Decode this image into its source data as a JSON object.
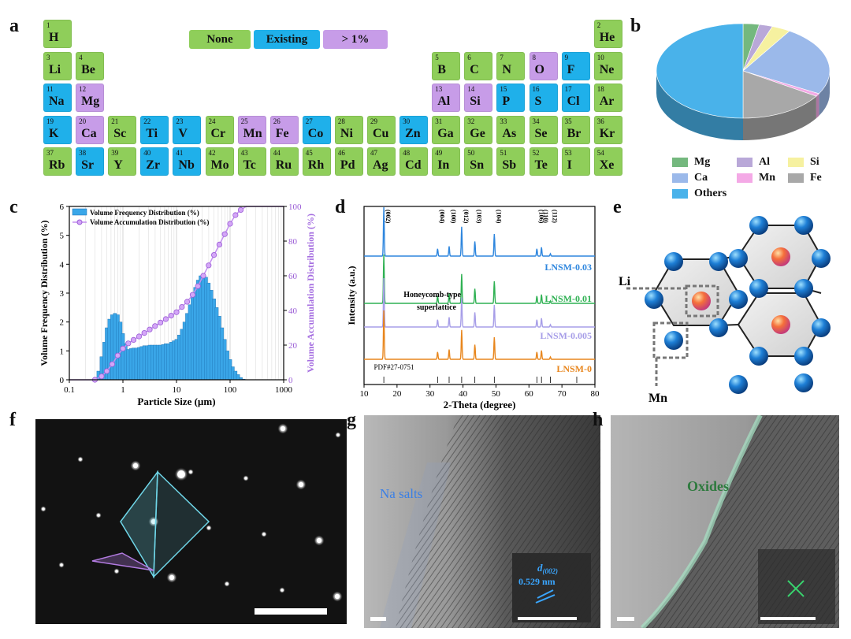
{
  "panel_labels": {
    "a": "a",
    "b": "b",
    "c": "c",
    "d": "d",
    "e": "e",
    "f": "f",
    "g": "g",
    "h": "h"
  },
  "legend": [
    {
      "label": "None",
      "color": "#8fce5a"
    },
    {
      "label": "Existing",
      "color": "#1fb0ea"
    },
    {
      "label": "> 1%",
      "color": "#c79ce8"
    }
  ],
  "colors": {
    "none": "#8fce5a",
    "existing": "#1fb0ea",
    "gt1": "#c79ce8"
  },
  "elements": [
    {
      "n": "1",
      "s": "H",
      "c": "none",
      "row": 0,
      "col": 0
    },
    {
      "n": "2",
      "s": "He",
      "c": "none",
      "row": 0,
      "col": 17
    },
    {
      "n": "3",
      "s": "Li",
      "c": "none",
      "row": 1,
      "col": 0
    },
    {
      "n": "4",
      "s": "Be",
      "c": "none",
      "row": 1,
      "col": 1
    },
    {
      "n": "5",
      "s": "B",
      "c": "none",
      "row": 1,
      "col": 12
    },
    {
      "n": "6",
      "s": "C",
      "c": "none",
      "row": 1,
      "col": 13
    },
    {
      "n": "7",
      "s": "N",
      "c": "none",
      "row": 1,
      "col": 14
    },
    {
      "n": "8",
      "s": "O",
      "c": "gt1",
      "row": 1,
      "col": 15
    },
    {
      "n": "9",
      "s": "F",
      "c": "existing",
      "row": 1,
      "col": 16
    },
    {
      "n": "10",
      "s": "Ne",
      "c": "none",
      "row": 1,
      "col": 17
    },
    {
      "n": "11",
      "s": "Na",
      "c": "existing",
      "row": 2,
      "col": 0
    },
    {
      "n": "12",
      "s": "Mg",
      "c": "gt1",
      "row": 2,
      "col": 1
    },
    {
      "n": "13",
      "s": "Al",
      "c": "gt1",
      "row": 2,
      "col": 12
    },
    {
      "n": "14",
      "s": "Si",
      "c": "gt1",
      "row": 2,
      "col": 13
    },
    {
      "n": "15",
      "s": "P",
      "c": "existing",
      "row": 2,
      "col": 14
    },
    {
      "n": "16",
      "s": "S",
      "c": "existing",
      "row": 2,
      "col": 15
    },
    {
      "n": "17",
      "s": "Cl",
      "c": "existing",
      "row": 2,
      "col": 16
    },
    {
      "n": "18",
      "s": "Ar",
      "c": "none",
      "row": 2,
      "col": 17
    },
    {
      "n": "19",
      "s": "K",
      "c": "existing",
      "row": 3,
      "col": 0
    },
    {
      "n": "20",
      "s": "Ca",
      "c": "gt1",
      "row": 3,
      "col": 1
    },
    {
      "n": "21",
      "s": "Sc",
      "c": "none",
      "row": 3,
      "col": 2
    },
    {
      "n": "22",
      "s": "Ti",
      "c": "existing",
      "row": 3,
      "col": 3
    },
    {
      "n": "23",
      "s": "V",
      "c": "existing",
      "row": 3,
      "col": 4
    },
    {
      "n": "24",
      "s": "Cr",
      "c": "none",
      "row": 3,
      "col": 5
    },
    {
      "n": "25",
      "s": "Mn",
      "c": "gt1",
      "row": 3,
      "col": 6
    },
    {
      "n": "26",
      "s": "Fe",
      "c": "gt1",
      "row": 3,
      "col": 7
    },
    {
      "n": "27",
      "s": "Co",
      "c": "existing",
      "row": 3,
      "col": 8
    },
    {
      "n": "28",
      "s": "Ni",
      "c": "none",
      "row": 3,
      "col": 9
    },
    {
      "n": "29",
      "s": "Cu",
      "c": "none",
      "row": 3,
      "col": 10
    },
    {
      "n": "30",
      "s": "Zn",
      "c": "existing",
      "row": 3,
      "col": 11
    },
    {
      "n": "31",
      "s": "Ga",
      "c": "none",
      "row": 3,
      "col": 12
    },
    {
      "n": "32",
      "s": "Ge",
      "c": "none",
      "row": 3,
      "col": 13
    },
    {
      "n": "33",
      "s": "As",
      "c": "none",
      "row": 3,
      "col": 14
    },
    {
      "n": "34",
      "s": "Se",
      "c": "none",
      "row": 3,
      "col": 15
    },
    {
      "n": "35",
      "s": "Br",
      "c": "none",
      "row": 3,
      "col": 16
    },
    {
      "n": "36",
      "s": "Kr",
      "c": "none",
      "row": 3,
      "col": 17
    },
    {
      "n": "37",
      "s": "Rb",
      "c": "none",
      "row": 4,
      "col": 0
    },
    {
      "n": "38",
      "s": "Sr",
      "c": "existing",
      "row": 4,
      "col": 1
    },
    {
      "n": "39",
      "s": "Y",
      "c": "none",
      "row": 4,
      "col": 2
    },
    {
      "n": "40",
      "s": "Zr",
      "c": "existing",
      "row": 4,
      "col": 3
    },
    {
      "n": "41",
      "s": "Nb",
      "c": "existing",
      "row": 4,
      "col": 4
    },
    {
      "n": "42",
      "s": "Mo",
      "c": "none",
      "row": 4,
      "col": 5
    },
    {
      "n": "43",
      "s": "Tc",
      "c": "none",
      "row": 4,
      "col": 6
    },
    {
      "n": "44",
      "s": "Ru",
      "c": "none",
      "row": 4,
      "col": 7
    },
    {
      "n": "45",
      "s": "Rh",
      "c": "none",
      "row": 4,
      "col": 8
    },
    {
      "n": "46",
      "s": "Pd",
      "c": "none",
      "row": 4,
      "col": 9
    },
    {
      "n": "47",
      "s": "Ag",
      "c": "none",
      "row": 4,
      "col": 10
    },
    {
      "n": "48",
      "s": "Cd",
      "c": "none",
      "row": 4,
      "col": 11
    },
    {
      "n": "49",
      "s": "In",
      "c": "none",
      "row": 4,
      "col": 12
    },
    {
      "n": "50",
      "s": "Sn",
      "c": "none",
      "row": 4,
      "col": 13
    },
    {
      "n": "51",
      "s": "Sb",
      "c": "none",
      "row": 4,
      "col": 14
    },
    {
      "n": "52",
      "s": "Te",
      "c": "none",
      "row": 4,
      "col": 15
    },
    {
      "n": "53",
      "s": "I",
      "c": "none",
      "row": 4,
      "col": 16
    },
    {
      "n": "54",
      "s": "Xe",
      "c": "none",
      "row": 4,
      "col": 17
    }
  ],
  "pie": {
    "slices": [
      {
        "name": "Mg",
        "value": 3,
        "color": "#74b87e"
      },
      {
        "name": "Al",
        "value": 2.5,
        "color": "#b9a8d8"
      },
      {
        "name": "Si",
        "value": 3.5,
        "color": "#f6f1a0"
      },
      {
        "name": "Ca",
        "value": 24,
        "color": "#9bb9ea"
      },
      {
        "name": "Mn",
        "value": 1,
        "color": "#f4a9e6"
      },
      {
        "name": "Fe",
        "value": 16,
        "color": "#a8a8a8"
      },
      {
        "name": "Others",
        "value": 50,
        "color": "#49b2ea"
      }
    ]
  },
  "chart_data": [
    {
      "type": "bar",
      "panel": "c",
      "series": [
        {
          "name": "Volume Frequency Distribution (%)",
          "type": "bar",
          "color": "#3aa6e8",
          "x": [
            0.35,
            0.4,
            0.45,
            0.5,
            0.56,
            0.63,
            0.71,
            0.8,
            0.9,
            1.0,
            1.12,
            1.26,
            1.41,
            1.58,
            1.78,
            2.0,
            2.24,
            2.51,
            2.82,
            3.16,
            3.55,
            3.98,
            4.47,
            5.01,
            5.62,
            6.31,
            7.08,
            7.94,
            8.91,
            10,
            11.2,
            12.6,
            14.1,
            15.8,
            17.8,
            20,
            22.4,
            25.1,
            28.2,
            31.6,
            35.5,
            39.8,
            44.7,
            50.1,
            56.2,
            63.1,
            70.8,
            79.4,
            89.1,
            100,
            112,
            126,
            141,
            158,
            178
          ],
          "y": [
            0.3,
            0.8,
            1.3,
            1.8,
            2.1,
            2.25,
            2.3,
            2.25,
            2.0,
            1.6,
            1.25,
            1.05,
            1.08,
            1.1,
            1.1,
            1.12,
            1.15,
            1.18,
            1.18,
            1.2,
            1.2,
            1.2,
            1.2,
            1.2,
            1.22,
            1.25,
            1.25,
            1.3,
            1.35,
            1.4,
            1.55,
            1.75,
            2.0,
            2.3,
            2.6,
            2.9,
            3.2,
            3.45,
            3.6,
            3.6,
            3.55,
            3.35,
            3.1,
            2.8,
            2.5,
            2.2,
            1.8,
            1.4,
            1.0,
            0.7,
            0.45,
            0.3,
            0.18,
            0.08,
            0.02
          ]
        },
        {
          "name": "Volume Accumulation Distribution (%)",
          "type": "line",
          "color": "#c38ef0",
          "x": [
            0.1,
            0.3,
            0.4,
            0.5,
            0.63,
            0.8,
            1.0,
            1.26,
            1.58,
            2.0,
            2.51,
            3.16,
            3.98,
            5.01,
            6.31,
            7.94,
            10,
            12.6,
            15.8,
            20,
            25.1,
            31.6,
            39.8,
            50.1,
            63.1,
            79.4,
            100,
            126,
            158,
            200,
            1000
          ],
          "y": [
            0,
            0,
            2,
            5,
            9,
            14,
            18,
            21,
            23,
            25,
            27,
            29,
            31,
            33,
            35,
            37,
            39,
            42,
            45,
            49,
            54,
            60,
            66,
            72,
            78,
            84,
            90,
            95,
            98,
            100,
            100
          ]
        }
      ],
      "xlabel": "Particle Size (µm)",
      "ylabel": "Volume Frequency Distribution (%)",
      "y2label": "Volume Accumulation Distribution (%)",
      "xscale": "log",
      "xlim": [
        0.1,
        1000
      ],
      "ylim": [
        0,
        6
      ],
      "y2lim": [
        0,
        100
      ],
      "xticks": [
        "0.1",
        "1",
        "10",
        "100",
        "1000"
      ],
      "yticks": [
        "0",
        "1",
        "2",
        "3",
        "4",
        "5",
        "6"
      ],
      "y2ticks": [
        "0",
        "20",
        "40",
        "60",
        "80",
        "100"
      ]
    },
    {
      "type": "line",
      "panel": "d",
      "xlabel": "2-Theta (degree)",
      "ylabel": "Intensity (a.u.)",
      "xlim": [
        10,
        80
      ],
      "xticks": [
        "10",
        "20",
        "30",
        "40",
        "50",
        "60",
        "70",
        "80"
      ],
      "series": [
        {
          "name": "LNSM-0.03",
          "color": "#2e86de",
          "offset": 3
        },
        {
          "name": "LNSM-0.01",
          "color": "#2fb153",
          "offset": 2
        },
        {
          "name": "LNSM-0.005",
          "color": "#a79ee8",
          "offset": 1
        },
        {
          "name": "LNSM-0",
          "color": "#e8861d",
          "offset": 0
        }
      ],
      "peaks": [
        {
          "pos": 16.0,
          "h": 1.0
        },
        {
          "pos": 32.3,
          "h": 0.15
        },
        {
          "pos": 35.8,
          "h": 0.2
        },
        {
          "pos": 39.6,
          "h": 0.6
        },
        {
          "pos": 43.6,
          "h": 0.3
        },
        {
          "pos": 49.5,
          "h": 0.45
        },
        {
          "pos": 62.4,
          "h": 0.15
        },
        {
          "pos": 63.8,
          "h": 0.18
        },
        {
          "pos": 66.5,
          "h": 0.05
        }
      ],
      "peak_labels": [
        {
          "pos": 16.0,
          "text": "(002)"
        },
        {
          "pos": 32.3,
          "text": "(004)"
        },
        {
          "pos": 35.8,
          "text": "(100)"
        },
        {
          "pos": 39.6,
          "text": "(012)"
        },
        {
          "pos": 43.6,
          "text": "(103)"
        },
        {
          "pos": 49.5,
          "text": "(104)"
        },
        {
          "pos": 62.4,
          "text": "(106)"
        },
        {
          "pos": 63.8,
          "text": "(110)"
        },
        {
          "pos": 66.5,
          "text": "(112)"
        }
      ],
      "annotation": "Honeycomb-type superlattice",
      "reference": "PDF#27-0751",
      "ref_ticks": [
        16.0,
        32.3,
        35.8,
        39.6,
        43.6,
        49.5,
        62.4,
        63.8,
        66.5,
        74.5
      ]
    }
  ],
  "panel_e": {
    "li_label": "Li",
    "mn_label": "Mn"
  },
  "panel_g": {
    "salt_label": "Na salts",
    "d_label": "d",
    "d_sub": "(002)",
    "d_value": "0.529 nm"
  },
  "panel_h": {
    "oxide_label": "Oxides"
  }
}
